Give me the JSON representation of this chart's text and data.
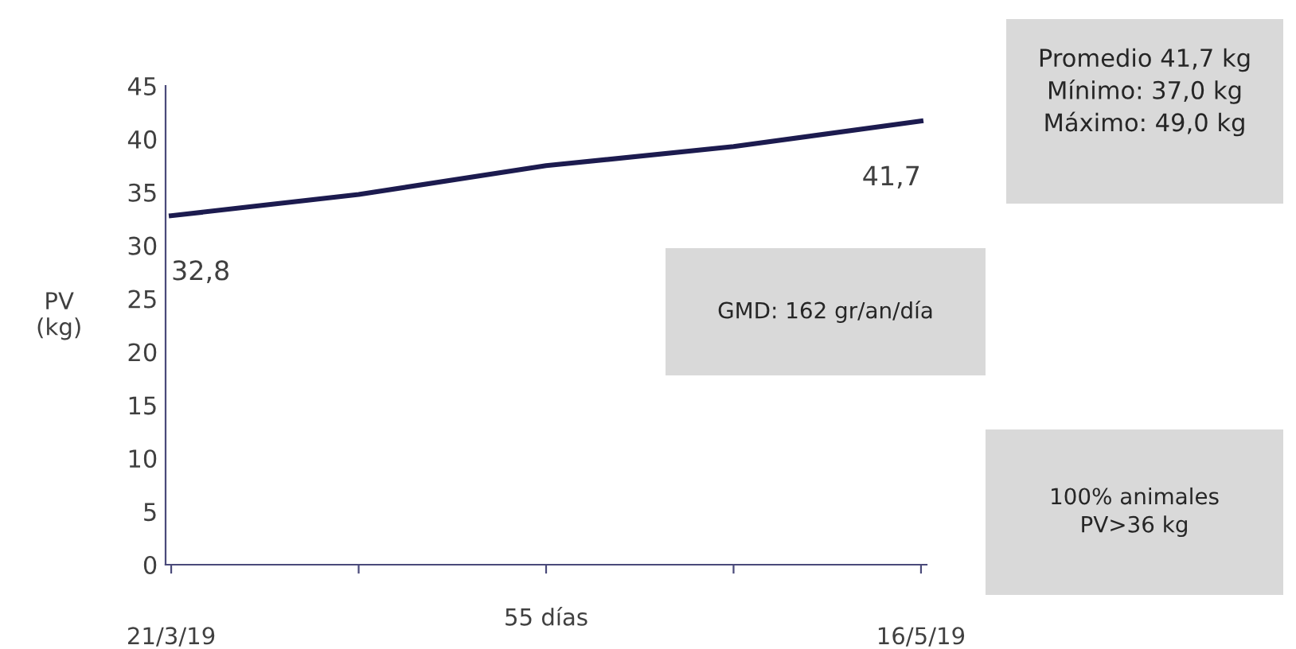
{
  "chart_data": {
    "type": "line",
    "ylabel": "PV\n(kg)",
    "xlabel": "55 días",
    "categories": [
      "21/3/19",
      null,
      null,
      null,
      "16/5/19"
    ],
    "series": [
      {
        "color": "#1c1b4f",
        "values": [
          32.8,
          34.8,
          37.5,
          39.3,
          41.7
        ],
        "value_labels": [
          "32,8",
          null,
          null,
          null,
          "41,7"
        ]
      }
    ],
    "ylim": [
      0,
      45
    ],
    "yticks": [
      0,
      5,
      10,
      15,
      20,
      25,
      30,
      35,
      40,
      45
    ],
    "grid": false,
    "legend": false,
    "marker": "none",
    "line_style": "solid",
    "annotations": [
      "Promedio 41,7 kg\nMínimo: 37,0 kg\nMáximo: 49,0 kg",
      "GMD: 162 gr/an/día",
      "100% animales\nPV>36 kg"
    ]
  }
}
